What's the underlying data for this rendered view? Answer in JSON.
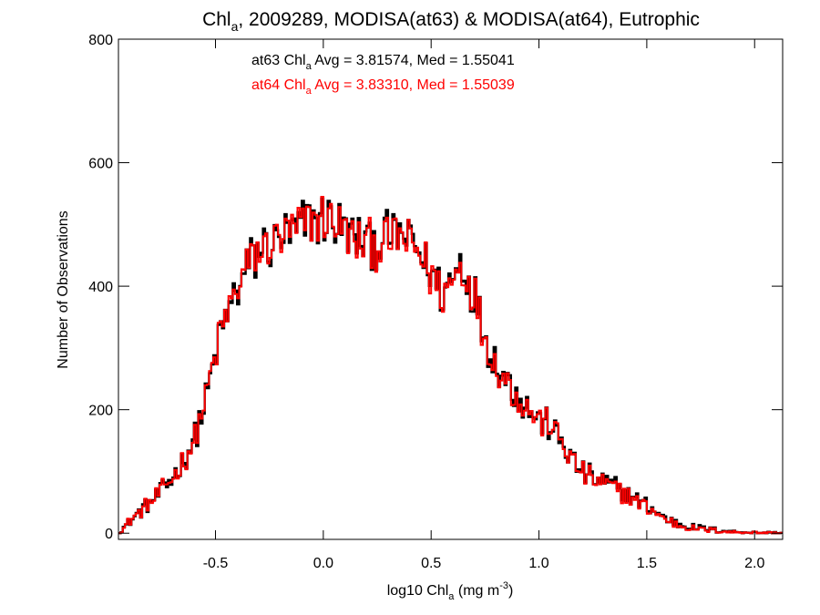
{
  "chart_data": {
    "type": "histogram",
    "title": {
      "prefix": "Chl",
      "sub": "a",
      "suffix": ", 2009289, MODISA(at63) & MODISA(at64), Eutrophic"
    },
    "xlabel": {
      "prefix": "log10 Chl",
      "sub": "a",
      "mid": " (mg m",
      "sup": "-3",
      "suffix": ")"
    },
    "ylabel": "Number of Observations",
    "xlim": [
      -0.95,
      2.13
    ],
    "ylim": [
      -10,
      800
    ],
    "xticks": [
      -0.5,
      0.0,
      0.5,
      1.0,
      1.5,
      2.0
    ],
    "xtick_labels": [
      "-0.5",
      "0.0",
      "0.5",
      "1.0",
      "1.5",
      "2.0"
    ],
    "yticks": [
      0,
      200,
      400,
      600,
      800
    ],
    "ytick_labels": [
      "0",
      "200",
      "400",
      "600",
      "800"
    ],
    "bin_width": 0.01,
    "annotations": [
      {
        "series": "at63",
        "prefix": "at63 Chl",
        "sub": "a",
        "suffix": " Avg = 3.81574, Med = 1.55041",
        "color": "#000000"
      },
      {
        "series": "at64",
        "prefix": "at64 Chl",
        "sub": "a",
        "suffix": " Avg = 3.83310, Med = 1.55039",
        "color": "#ff0000"
      }
    ],
    "series": [
      {
        "name": "at63",
        "color": "#000000",
        "anchors": [
          [
            -0.95,
            0
          ],
          [
            -0.9,
            18
          ],
          [
            -0.85,
            35
          ],
          [
            -0.8,
            50
          ],
          [
            -0.75,
            68
          ],
          [
            -0.7,
            90
          ],
          [
            -0.65,
            115
          ],
          [
            -0.6,
            150
          ],
          [
            -0.55,
            210
          ],
          [
            -0.5,
            290
          ],
          [
            -0.45,
            350
          ],
          [
            -0.4,
            395
          ],
          [
            -0.35,
            430
          ],
          [
            -0.3,
            455
          ],
          [
            -0.25,
            470
          ],
          [
            -0.2,
            478
          ],
          [
            -0.15,
            485
          ],
          [
            -0.1,
            495
          ],
          [
            -0.05,
            505
          ],
          [
            0.0,
            510
          ],
          [
            0.05,
            505
          ],
          [
            0.1,
            490
          ],
          [
            0.15,
            475
          ],
          [
            0.2,
            468
          ],
          [
            0.25,
            470
          ],
          [
            0.3,
            478
          ],
          [
            0.35,
            482
          ],
          [
            0.4,
            472
          ],
          [
            0.45,
            455
          ],
          [
            0.5,
            425
          ],
          [
            0.55,
            385
          ],
          [
            0.6,
            415
          ],
          [
            0.63,
            440
          ],
          [
            0.65,
            430
          ],
          [
            0.7,
            390
          ],
          [
            0.75,
            320
          ],
          [
            0.8,
            275
          ],
          [
            0.85,
            250
          ],
          [
            0.9,
            225
          ],
          [
            0.95,
            205
          ],
          [
            1.0,
            185
          ],
          [
            1.05,
            175
          ],
          [
            1.1,
            150
          ],
          [
            1.15,
            120
          ],
          [
            1.2,
            100
          ],
          [
            1.25,
            90
          ],
          [
            1.3,
            82
          ],
          [
            1.35,
            75
          ],
          [
            1.4,
            65
          ],
          [
            1.45,
            55
          ],
          [
            1.5,
            45
          ],
          [
            1.55,
            32
          ],
          [
            1.6,
            22
          ],
          [
            1.65,
            15
          ],
          [
            1.7,
            11
          ],
          [
            1.75,
            8
          ],
          [
            1.8,
            6
          ],
          [
            1.85,
            4
          ],
          [
            1.9,
            2
          ],
          [
            2.0,
            1
          ],
          [
            2.13,
            0
          ]
        ]
      },
      {
        "name": "at64",
        "color": "#ff0000",
        "anchors": [
          [
            -0.95,
            0
          ],
          [
            -0.9,
            18
          ],
          [
            -0.85,
            35
          ],
          [
            -0.8,
            50
          ],
          [
            -0.75,
            68
          ],
          [
            -0.7,
            90
          ],
          [
            -0.65,
            115
          ],
          [
            -0.6,
            150
          ],
          [
            -0.55,
            210
          ],
          [
            -0.5,
            290
          ],
          [
            -0.45,
            350
          ],
          [
            -0.4,
            395
          ],
          [
            -0.35,
            430
          ],
          [
            -0.3,
            455
          ],
          [
            -0.25,
            470
          ],
          [
            -0.2,
            478
          ],
          [
            -0.15,
            485
          ],
          [
            -0.1,
            495
          ],
          [
            -0.05,
            505
          ],
          [
            0.0,
            510
          ],
          [
            0.05,
            505
          ],
          [
            0.1,
            488
          ],
          [
            0.15,
            472
          ],
          [
            0.2,
            465
          ],
          [
            0.25,
            466
          ],
          [
            0.3,
            475
          ],
          [
            0.35,
            480
          ],
          [
            0.4,
            470
          ],
          [
            0.45,
            452
          ],
          [
            0.5,
            422
          ],
          [
            0.55,
            382
          ],
          [
            0.6,
            410
          ],
          [
            0.63,
            436
          ],
          [
            0.65,
            425
          ],
          [
            0.7,
            386
          ],
          [
            0.75,
            318
          ],
          [
            0.8,
            272
          ],
          [
            0.85,
            247
          ],
          [
            0.9,
            222
          ],
          [
            0.95,
            203
          ],
          [
            1.0,
            183
          ],
          [
            1.05,
            178
          ],
          [
            1.1,
            152
          ],
          [
            1.15,
            118
          ],
          [
            1.2,
            97
          ],
          [
            1.25,
            88
          ],
          [
            1.3,
            80
          ],
          [
            1.35,
            73
          ],
          [
            1.4,
            63
          ],
          [
            1.45,
            52
          ],
          [
            1.5,
            43
          ],
          [
            1.55,
            30
          ],
          [
            1.6,
            20
          ],
          [
            1.65,
            13
          ],
          [
            1.7,
            9
          ],
          [
            1.75,
            6
          ],
          [
            1.8,
            5
          ],
          [
            1.85,
            3
          ],
          [
            1.9,
            2
          ],
          [
            2.0,
            1
          ],
          [
            2.13,
            0
          ]
        ]
      }
    ]
  }
}
